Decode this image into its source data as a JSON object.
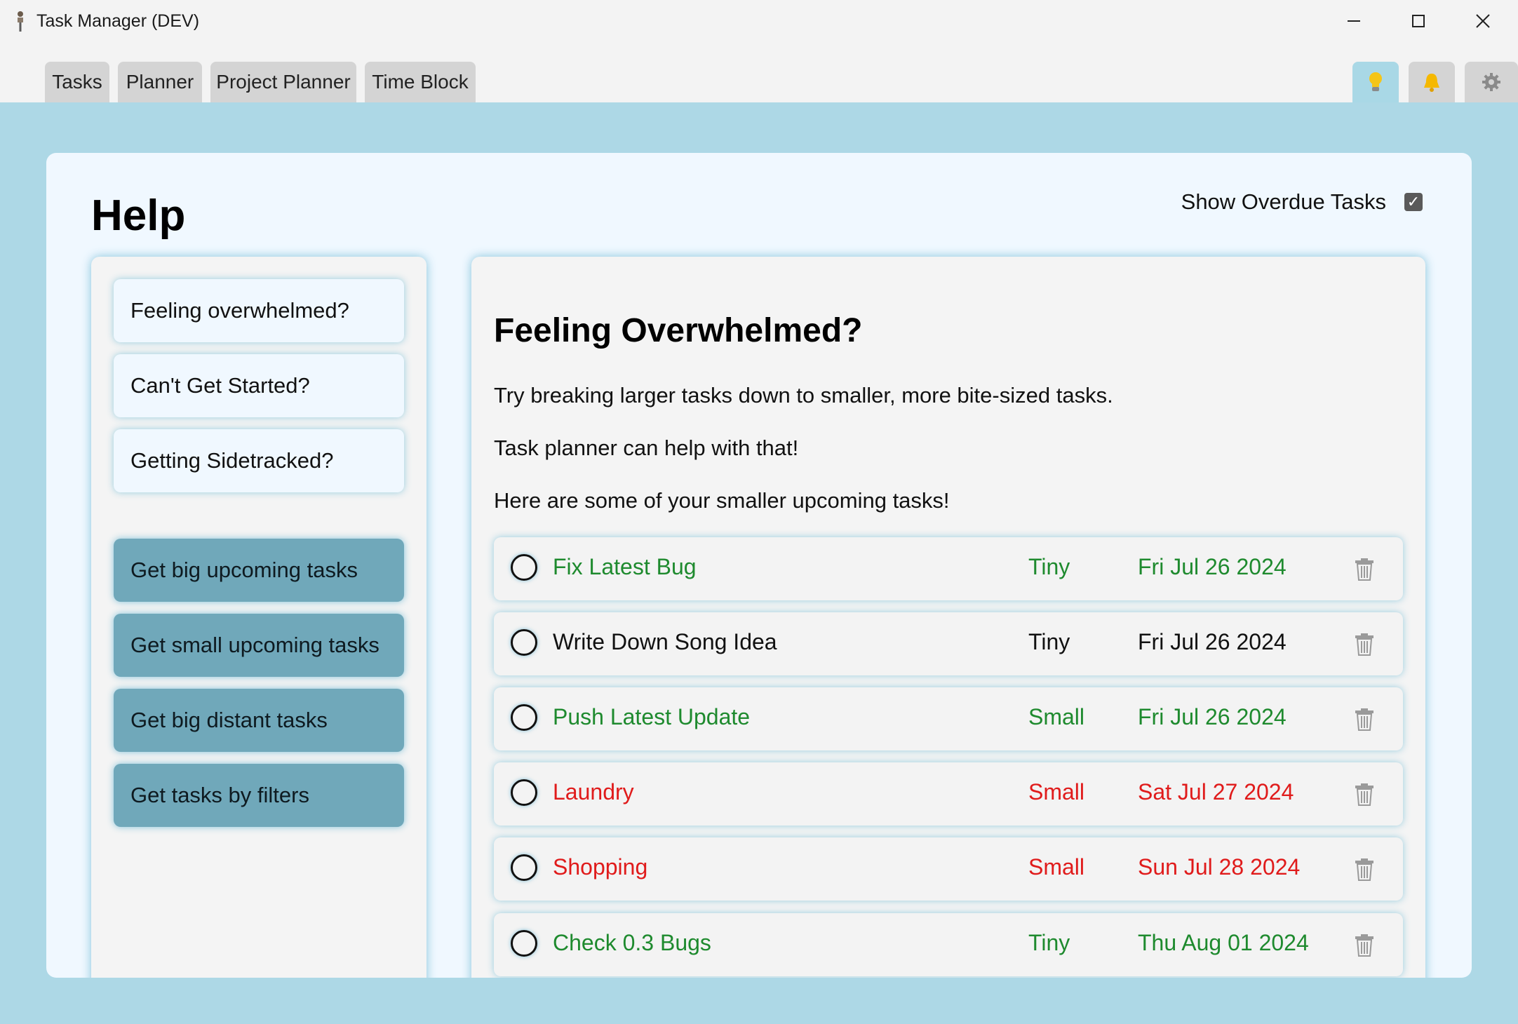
{
  "window": {
    "title": "Task Manager (DEV)"
  },
  "tabs": [
    {
      "label": "Tasks"
    },
    {
      "label": "Planner"
    },
    {
      "label": "Project Planner"
    },
    {
      "label": "Time Block"
    }
  ],
  "icon_tabs": [
    {
      "icon": "lightbulb-icon",
      "active": true
    },
    {
      "icon": "bell-icon",
      "active": false
    },
    {
      "icon": "gear-icon",
      "active": false
    }
  ],
  "help": {
    "title": "Help",
    "show_overdue_label": "Show Overdue Tasks",
    "show_overdue_checked": true
  },
  "sidebar": {
    "questions": [
      {
        "label": "Feeling overwhelmed?"
      },
      {
        "label": "Can't Get Started?"
      },
      {
        "label": "Getting Sidetracked?"
      }
    ],
    "actions": [
      {
        "label": "Get big upcoming tasks"
      },
      {
        "label": "Get small upcoming tasks"
      },
      {
        "label": "Get big distant tasks"
      },
      {
        "label": "Get tasks by filters"
      }
    ]
  },
  "content": {
    "title": "Feeling Overwhelmed?",
    "paragraphs": [
      "Try breaking larger tasks down to smaller, more bite-sized tasks.",
      "Task planner can help with that!",
      "Here are some of your smaller upcoming tasks!"
    ],
    "tasks": [
      {
        "name": "Fix Latest Bug",
        "size": "Tiny",
        "date": "Fri Jul 26 2024",
        "status": "green"
      },
      {
        "name": "Write Down Song Idea",
        "size": "Tiny",
        "date": "Fri Jul 26 2024",
        "status": "black"
      },
      {
        "name": "Push Latest Update",
        "size": "Small",
        "date": "Fri Jul 26 2024",
        "status": "green"
      },
      {
        "name": "Laundry",
        "size": "Small",
        "date": "Sat Jul 27 2024",
        "status": "red"
      },
      {
        "name": "Shopping",
        "size": "Small",
        "date": "Sun Jul 28 2024",
        "status": "red"
      },
      {
        "name": "Check 0.3 Bugs",
        "size": "Tiny",
        "date": "Thu Aug 01 2024",
        "status": "green"
      }
    ]
  },
  "colors": {
    "background": "#add8e6",
    "panel": "#f0f8ff",
    "action_button": "#70a8ba",
    "green": "#1e8a2e",
    "red": "#e01b1b"
  }
}
